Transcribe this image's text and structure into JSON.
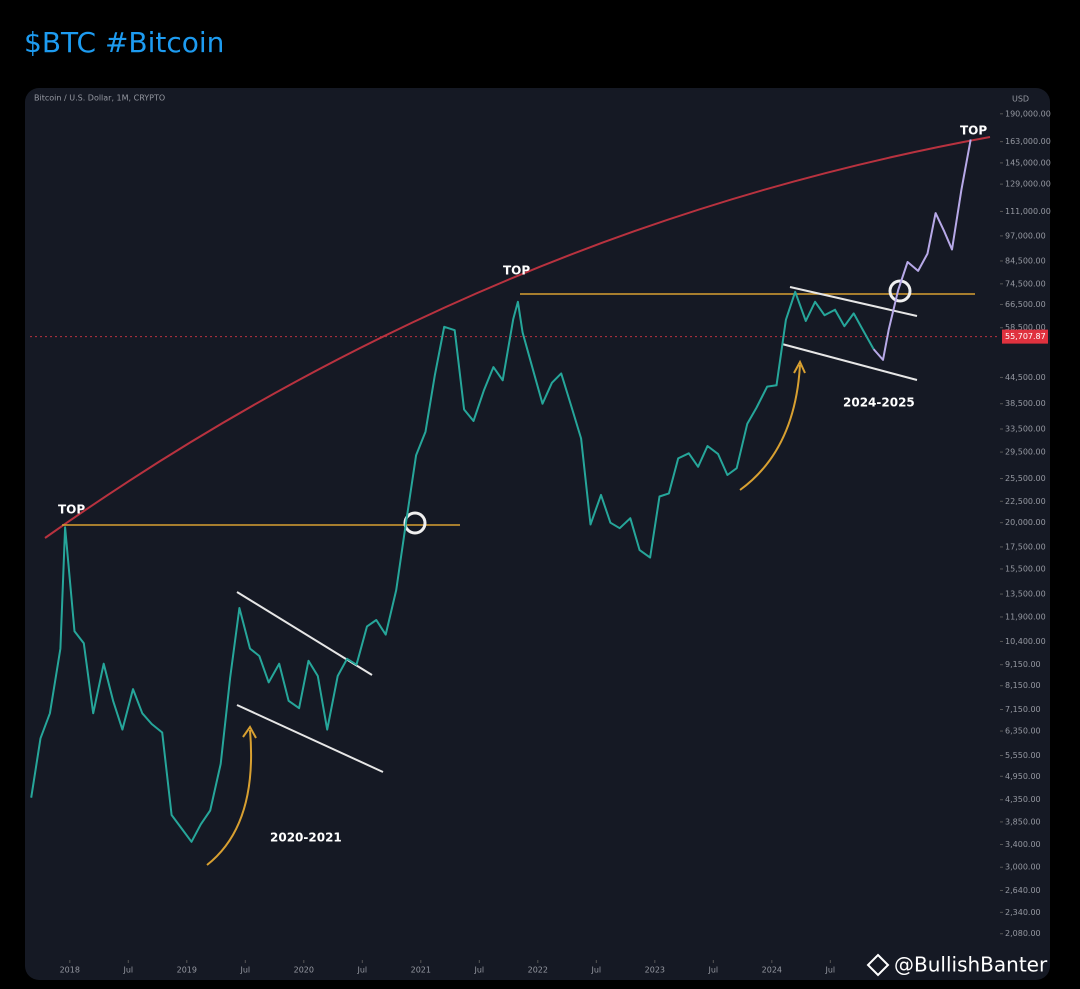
{
  "header": {
    "title": "$BTC #Bitcoin"
  },
  "chart_data": {
    "type": "line",
    "subtitle": "Bitcoin / U.S. Dollar, 1M, CRYPTO",
    "y_unit": "USD",
    "log_scale": true,
    "current_price": 55707.87,
    "current_price_label": "55,707.87",
    "annotations": [
      "TOP",
      "TOP",
      "TOP",
      "2020-2021",
      "2024-2025"
    ],
    "xlim": [
      2017.66,
      2025.95
    ],
    "xticks": [
      2018,
      {
        "value": 2018.5,
        "label": "Jul"
      },
      2019,
      {
        "value": 2019.5,
        "label": "Jul"
      },
      2020,
      {
        "value": 2020.5,
        "label": "Jul"
      },
      2021,
      {
        "value": 2021.5,
        "label": "Jul"
      },
      2022,
      {
        "value": 2022.5,
        "label": "Jul"
      },
      2023,
      {
        "value": 2023.5,
        "label": "Jul"
      },
      2024,
      {
        "value": 2024.5,
        "label": "Jul"
      }
    ],
    "ylim": [
      1800,
      205000
    ],
    "yticks": [
      {
        "value": 190000,
        "label": "190,000.00"
      },
      {
        "value": 163000,
        "label": "163,000.00"
      },
      {
        "value": 145000,
        "label": "145,000.00"
      },
      {
        "value": 129000,
        "label": "129,000.00"
      },
      {
        "value": 111000,
        "label": "111,000.00"
      },
      {
        "value": 97000,
        "label": "97,000.00"
      },
      {
        "value": 84500,
        "label": "84,500.00"
      },
      {
        "value": 74500,
        "label": "74,500.00"
      },
      {
        "value": 66500,
        "label": "66,500.00"
      },
      {
        "value": 58500,
        "label": "58,500.00"
      },
      {
        "value": 44500,
        "label": "44,500.00"
      },
      {
        "value": 38500,
        "label": "38,500.00"
      },
      {
        "value": 33500,
        "label": "33,500.00"
      },
      {
        "value": 29500,
        "label": "29,500.00"
      },
      {
        "value": 25500,
        "label": "25,500.00"
      },
      {
        "value": 22500,
        "label": "22,500.00"
      },
      {
        "value": 20000,
        "label": "20,000.00"
      },
      {
        "value": 17500,
        "label": "17,500.00"
      },
      {
        "value": 15500,
        "label": "15,500.00"
      },
      {
        "value": 13500,
        "label": "13,500.00"
      },
      {
        "value": 11900,
        "label": "11,900.00"
      },
      {
        "value": 10400,
        "label": "10,400.00"
      },
      {
        "value": 9150,
        "label": "9,150.00"
      },
      {
        "value": 8150,
        "label": "8,150.00"
      },
      {
        "value": 7150,
        "label": "7,150.00"
      },
      {
        "value": 6350,
        "label": "6,350.00"
      },
      {
        "value": 5550,
        "label": "5,550.00"
      },
      {
        "value": 4950,
        "label": "4,950.00"
      },
      {
        "value": 4350,
        "label": "4,350.00"
      },
      {
        "value": 3850,
        "label": "3,850.00"
      },
      {
        "value": 3400,
        "label": "3,400.00"
      },
      {
        "value": 3000,
        "label": "3,000.00"
      },
      {
        "value": 2640,
        "label": "2,640.00"
      },
      {
        "value": 2340,
        "label": "2,340.00"
      },
      {
        "value": 2080,
        "label": "2,080.00"
      }
    ],
    "series": [
      {
        "color": "#26a69a",
        "x": [
          2017.67,
          2017.75,
          2017.83,
          2017.92,
          2017.96,
          2018.04,
          2018.12,
          2018.2,
          2018.29,
          2018.37,
          2018.45,
          2018.54,
          2018.62,
          2018.7,
          2018.79,
          2018.87,
          2018.96,
          2019.04,
          2019.12,
          2019.2,
          2019.29,
          2019.37,
          2019.45,
          2019.54,
          2019.62,
          2019.7,
          2019.79,
          2019.87,
          2019.96,
          2020.04,
          2020.12,
          2020.2,
          2020.29,
          2020.37,
          2020.45,
          2020.54,
          2020.62,
          2020.7,
          2020.79,
          2020.87,
          2020.96,
          2021.04,
          2021.12,
          2021.2,
          2021.29,
          2021.37,
          2021.45,
          2021.54,
          2021.62,
          2021.7,
          2021.79,
          2021.83,
          2021.87,
          2021.96,
          2022.04,
          2022.12,
          2022.2,
          2022.29,
          2022.37,
          2022.45,
          2022.54,
          2022.62,
          2022.7,
          2022.79,
          2022.87,
          2022.96,
          2023.04,
          2023.12,
          2023.2,
          2023.29,
          2023.37,
          2023.45,
          2023.54,
          2023.62,
          2023.7,
          2023.79,
          2023.87,
          2023.96,
          2024.04,
          2024.12,
          2024.2,
          2024.29,
          2024.37,
          2024.45,
          2024.54,
          2024.62,
          2024.7,
          2024.79,
          2024.87
        ],
        "values": [
          4400,
          6100,
          7000,
          10000,
          19500,
          11000,
          10300,
          7000,
          9200,
          7500,
          6400,
          8000,
          7000,
          6600,
          6300,
          4000,
          3700,
          3450,
          3800,
          4100,
          5300,
          8500,
          12500,
          10000,
          9600,
          8300,
          9200,
          7500,
          7200,
          9350,
          8600,
          6400,
          8600,
          9450,
          9150,
          11300,
          11700,
          10800,
          13800,
          19700,
          29000,
          33000,
          45000,
          58800,
          57700,
          37300,
          35000,
          41500,
          47100,
          43800,
          61300,
          67500,
          57000,
          46300,
          38500,
          43200,
          45500,
          37700,
          31800,
          19800,
          23300,
          20000,
          19400,
          20500,
          17200,
          16500,
          23100,
          23500,
          28500,
          29300,
          27200,
          30500,
          29200,
          26000,
          27000,
          34500,
          37700,
          42300,
          42600,
          61100,
          71300,
          60700,
          67500,
          62700,
          64600,
          59000,
          63300,
          57000,
          52000
        ]
      },
      {
        "color": "#b7a9e8",
        "x": [
          2024.87,
          2024.95,
          2025.0,
          2025.08,
          2025.16,
          2025.25,
          2025.33,
          2025.4,
          2025.47,
          2025.54,
          2025.62,
          2025.7
        ],
        "values": [
          52000,
          49000,
          58000,
          72000,
          84000,
          80000,
          88000,
          110000,
          100000,
          90000,
          125000,
          165000
        ]
      }
    ]
  },
  "watermark": "@BullishBanter"
}
